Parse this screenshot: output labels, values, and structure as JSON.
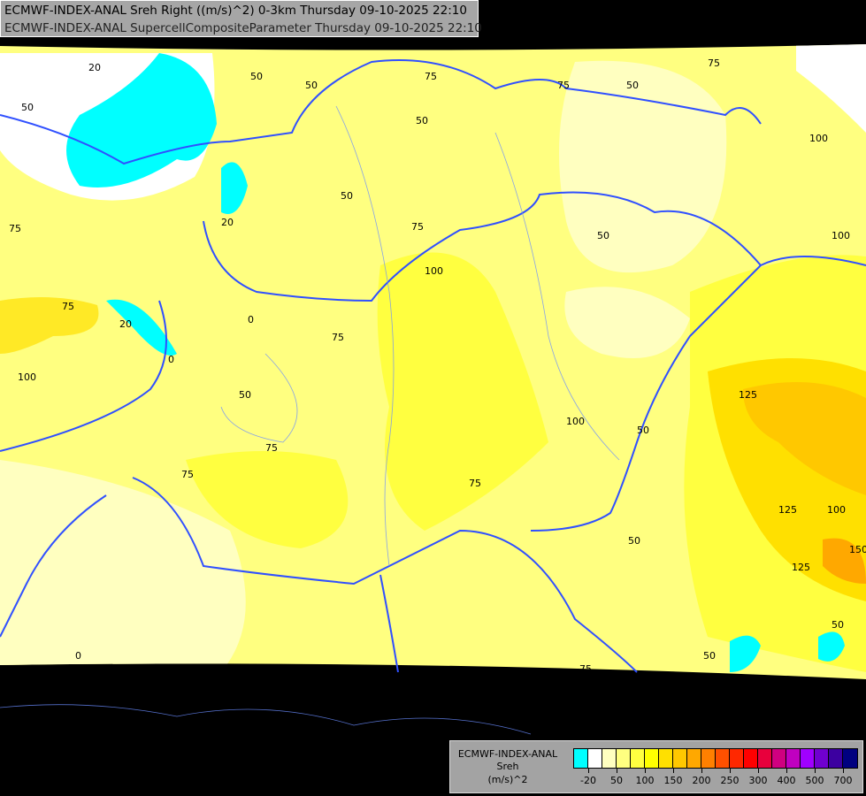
{
  "header": {
    "line1": "ECMWF-INDEX-ANAL Sreh Right ((m/s)^2) 0-3km Thursday 09-10-2025 22:10",
    "line2": "ECMWF-INDEX-ANAL SupercellCompositeParameter Thursday 09-10-2025 22:10"
  },
  "legend": {
    "model": "ECMWF-INDEX-ANAL",
    "variable": "Sreh",
    "unit": "(m/s)^2",
    "colors": [
      "#00ffff",
      "#ffffff",
      "#ffffc0",
      "#ffff80",
      "#ffff40",
      "#ffff00",
      "#ffe000",
      "#ffc800",
      "#ffa800",
      "#ff8000",
      "#ff5000",
      "#ff2800",
      "#ff0000",
      "#e8003c",
      "#d00080",
      "#c000c0",
      "#a000ff",
      "#7000d0",
      "#3c00a0",
      "#000080"
    ],
    "tick_labels": [
      {
        "label": "-20",
        "boundary": 1
      },
      {
        "label": "50",
        "boundary": 3
      },
      {
        "label": "100",
        "boundary": 5
      },
      {
        "label": "150",
        "boundary": 7
      },
      {
        "label": "200",
        "boundary": 9
      },
      {
        "label": "250",
        "boundary": 11
      },
      {
        "label": "300",
        "boundary": 13
      },
      {
        "label": "400",
        "boundary": 15
      },
      {
        "label": "500",
        "boundary": 17
      },
      {
        "label": "700",
        "boundary": 19
      }
    ]
  },
  "contour_labels": [
    "20",
    "50",
    "50",
    "75",
    "50",
    "75",
    "50",
    "100",
    "75",
    "50",
    "20",
    "50",
    "75",
    "100",
    "100",
    "75",
    "20",
    "0",
    "75",
    "50",
    "100",
    "0",
    "75",
    "50",
    "75",
    "100",
    "50",
    "125",
    "75",
    "75",
    "125",
    "100",
    "150",
    "125",
    "50",
    "50",
    "0",
    "75",
    "50"
  ]
}
